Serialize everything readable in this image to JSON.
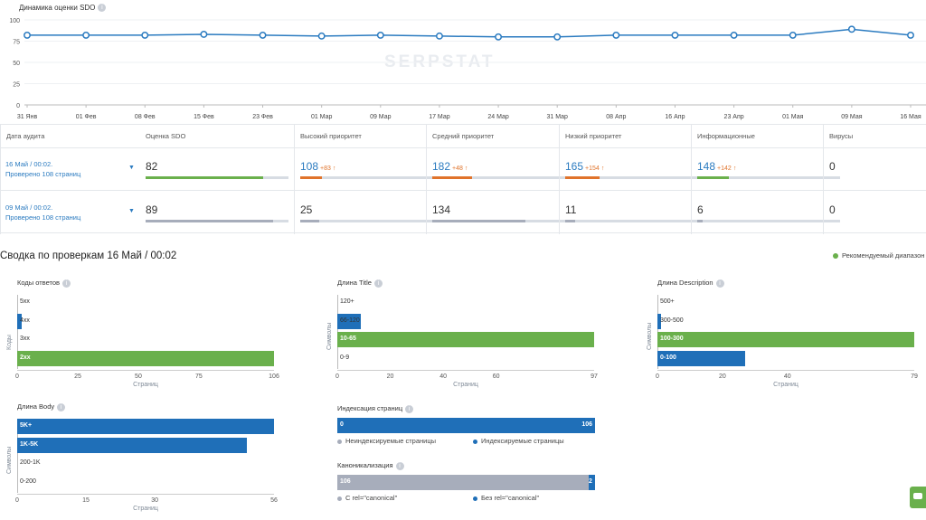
{
  "trend_chart": {
    "title": "Динамика оценки SDO",
    "watermark": "SERPSTAT",
    "y_ticks": [
      "100",
      "75",
      "50",
      "25",
      "0"
    ],
    "x_labels": [
      "31 Янв",
      "01 Фев",
      "08 Фев",
      "15 Фев",
      "23 Фев",
      "01 Мар",
      "09 Мар",
      "17 Мар",
      "24 Мар",
      "31 Мар",
      "08 Апр",
      "16 Апр",
      "23 Апр",
      "01 Мая",
      "09 Мая",
      "16 Мая"
    ],
    "line_color": "#2b7bc0"
  },
  "chart_data": {
    "type": "line",
    "title": "Динамика оценки SDO",
    "x": [
      "31 Янв",
      "01 Фев",
      "08 Фев",
      "15 Фев",
      "23 Фев",
      "01 Мар",
      "09 Мар",
      "17 Мар",
      "24 Мар",
      "31 Мар",
      "08 Апр",
      "16 Апр",
      "23 Апр",
      "01 Мая",
      "09 Мая",
      "16 Мая"
    ],
    "values": [
      82,
      82,
      82,
      83,
      82,
      81,
      82,
      81,
      80,
      80,
      82,
      82,
      82,
      82,
      89,
      82
    ],
    "ylim": [
      0,
      100
    ],
    "grid": true
  },
  "table": {
    "headers": [
      "Дата аудита",
      "Оценка SDO",
      "Высокий приоритет",
      "Средний приоритет",
      "Низкий приоритет",
      "Информационные",
      "Вирусы"
    ],
    "rows": [
      {
        "date": "16 Май / 00:02.",
        "checked": "Проверено 108 страниц",
        "cells": [
          {
            "value": "82",
            "delta": "",
            "fill": 0.82,
            "color": "#6ab04c",
            "blue": false
          },
          {
            "value": "108",
            "delta": "+83",
            "fill": 0.15,
            "color": "#e0732b",
            "blue": true
          },
          {
            "value": "182",
            "delta": "+48",
            "fill": 0.28,
            "color": "#e0732b",
            "blue": true
          },
          {
            "value": "165",
            "delta": "+154",
            "fill": 0.24,
            "color": "#e0732b",
            "blue": true
          },
          {
            "value": "148",
            "delta": "+142",
            "fill": 0.22,
            "color": "#6ab04c",
            "blue": true
          },
          {
            "value": "0",
            "delta": "",
            "fill": 0,
            "color": "#6ab04c",
            "blue": false
          }
        ]
      },
      {
        "date": "09 Май / 00:02.",
        "checked": "Проверено 108 страниц",
        "cells": [
          {
            "value": "89",
            "delta": "",
            "fill": 0.89,
            "color": "#a7adbb",
            "blue": false
          },
          {
            "value": "25",
            "delta": "",
            "fill": 0.13,
            "color": "#a7adbb",
            "blue": false
          },
          {
            "value": "134",
            "delta": "",
            "fill": 0.65,
            "color": "#a7adbb",
            "blue": false
          },
          {
            "value": "11",
            "delta": "",
            "fill": 0.07,
            "color": "#a7adbb",
            "blue": false
          },
          {
            "value": "6",
            "delta": "",
            "fill": 0.04,
            "color": "#a7adbb",
            "blue": false
          },
          {
            "value": "0",
            "delta": "",
            "fill": 0,
            "color": "#a7adbb",
            "blue": false
          }
        ]
      }
    ]
  },
  "summary": {
    "title": "Сводка по проверкам 16 Май / 00:02",
    "legend_recommended": "Рекомендуемый диапазон"
  },
  "mini_charts": [
    {
      "title": "Коды ответов",
      "ytitle": "Коды",
      "xtitle": "Страниц",
      "max": 106,
      "ticks": [
        "0",
        "25",
        "50",
        "75",
        "106"
      ],
      "tick_values": [
        0,
        25,
        50,
        75,
        106
      ],
      "bars": [
        {
          "label": "5xx",
          "value": 0,
          "color": "#1f6fb8"
        },
        {
          "label": "4xx",
          "value": 2,
          "color": "#1f6fb8"
        },
        {
          "label": "3xx",
          "value": 0,
          "color": "#1f6fb8"
        },
        {
          "label": "2xx",
          "value": 106,
          "color": "#6ab04c"
        }
      ]
    },
    {
      "title": "Длина Title",
      "ytitle": "Символы",
      "xtitle": "Страниц",
      "max": 97,
      "ticks": [
        "0",
        "20",
        "40",
        "60",
        "97"
      ],
      "tick_values": [
        0,
        20,
        40,
        60,
        97
      ],
      "bars": [
        {
          "label": "120+",
          "value": 0,
          "color": "#1f6fb8"
        },
        {
          "label": "66-120",
          "value": 9,
          "color": "#1f6fb8"
        },
        {
          "label": "10-65",
          "value": 97,
          "color": "#6ab04c"
        },
        {
          "label": "0-9",
          "value": 0,
          "color": "#1f6fb8"
        }
      ]
    },
    {
      "title": "Длина Description",
      "ytitle": "Символы",
      "xtitle": "Страниц",
      "max": 79,
      "ticks": [
        "0",
        "20",
        "40",
        "79"
      ],
      "tick_values": [
        0,
        20,
        40,
        79
      ],
      "bars": [
        {
          "label": "500+",
          "value": 0,
          "color": "#1f6fb8"
        },
        {
          "label": "300-500",
          "value": 1,
          "color": "#1f6fb8"
        },
        {
          "label": "100-300",
          "value": 79,
          "color": "#6ab04c"
        },
        {
          "label": "0-100",
          "value": 27,
          "color": "#1f6fb8"
        }
      ]
    },
    {
      "title": "Длина Body",
      "ytitle": "Символы",
      "xtitle": "Страниц",
      "max": 56,
      "ticks": [
        "0",
        "15",
        "30",
        "56"
      ],
      "tick_values": [
        0,
        15,
        30,
        56
      ],
      "bars": [
        {
          "label": "5K+",
          "value": 56,
          "color": "#1f6fb8"
        },
        {
          "label": "1K-5K",
          "value": 50,
          "color": "#1f6fb8"
        },
        {
          "label": "200-1K",
          "value": 0,
          "color": "#1f6fb8"
        },
        {
          "label": "0-200",
          "value": 0,
          "color": "#1f6fb8"
        }
      ]
    }
  ],
  "indexation": {
    "title": "Индексация страниц",
    "left_value": "0",
    "right_value": "106",
    "legend": [
      {
        "label": "Неиндексируемые страницы",
        "color": "#a7adbb"
      },
      {
        "label": "Индексируемые страницы",
        "color": "#1f6fb8"
      }
    ]
  },
  "canonical": {
    "title": "Каноникализация",
    "left_value": "106",
    "right_value": "2",
    "legend": [
      {
        "label": "С rel=\"canonical\"",
        "color": "#a7adbb"
      },
      {
        "label": "Без rel=\"canonical\"",
        "color": "#1f6fb8"
      }
    ]
  }
}
